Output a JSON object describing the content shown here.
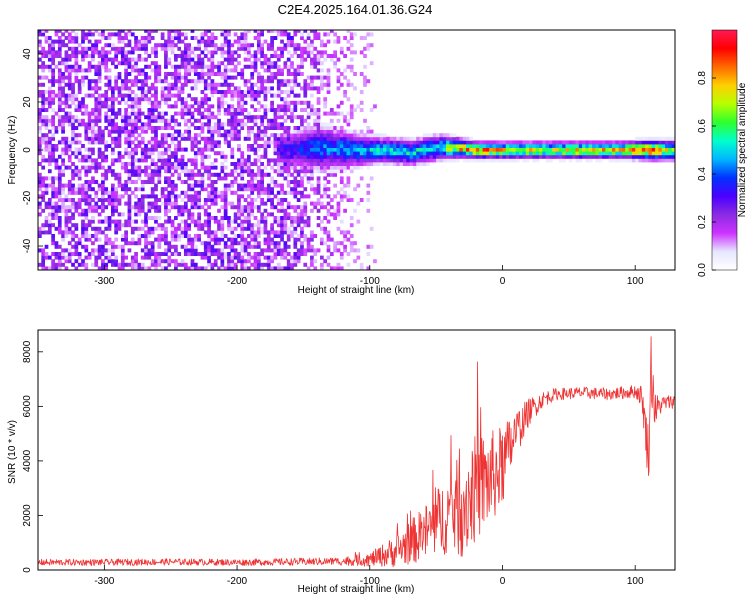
{
  "title": "C2E4.2025.164.01.36.G24",
  "colors": {
    "snr_line": "#ee3333",
    "axis": "#000000",
    "background": "#ffffff",
    "cbar_stops": [
      "#ffffff",
      "#e6e6ff",
      "#cc33ff",
      "#8a2be2",
      "#4a00ff",
      "#0033ff",
      "#00b7ff",
      "#00ffcc",
      "#2eff2e",
      "#b6ff00",
      "#ffd000",
      "#ff6a00",
      "#ff0000",
      "#ff1a55"
    ]
  },
  "chart_data": [
    {
      "id": "spectrogram",
      "type": "heatmap",
      "title": "C2E4.2025.164.01.36.G24",
      "xlabel": "Height of straight line (km)",
      "ylabel": "Frequency (Hz)",
      "xlim": [
        -350,
        130
      ],
      "ylim": [
        -50,
        50
      ],
      "xticks": [
        -300,
        -200,
        -100,
        0,
        100
      ],
      "yticks": [
        -40,
        -20,
        0,
        20,
        40
      ],
      "colorbar": {
        "label": "Normalized spectral amplitude",
        "ticks": [
          "0.0",
          "0.2",
          "0.4",
          "0.6",
          "0.8"
        ],
        "range": [
          0,
          1
        ]
      },
      "noise_region_km": [
        -350,
        -95
      ],
      "signal_ridge": {
        "frequency_hz": 0,
        "x_km": [
          -170,
          -140,
          -110,
          -90,
          -70,
          -50,
          -35,
          -20,
          0,
          30,
          60,
          90,
          110,
          130
        ],
        "center_hz": [
          0,
          1,
          0,
          0,
          -1,
          1,
          1,
          0,
          0,
          0,
          0,
          0,
          0,
          0
        ],
        "half_width_hz": [
          5,
          7,
          5,
          4,
          4,
          4,
          3,
          2.5,
          2.5,
          2.5,
          2.5,
          2.5,
          3,
          3
        ],
        "peak_amplitude": [
          0.3,
          0.4,
          0.45,
          0.5,
          0.5,
          0.5,
          0.75,
          0.8,
          0.75,
          0.7,
          0.75,
          0.75,
          0.85,
          0.6
        ]
      }
    },
    {
      "id": "snr",
      "type": "line",
      "xlabel": "Height of straight line (km)",
      "ylabel": "SNR (10 * v/v)",
      "xlim": [
        -350,
        130
      ],
      "ylim": [
        0,
        8800
      ],
      "xticks": [
        -300,
        -200,
        -100,
        0,
        100
      ],
      "yticks": [
        0,
        2000,
        4000,
        6000,
        8000
      ],
      "series": [
        {
          "name": "SNR",
          "x": [
            -350,
            -300,
            -250,
            -200,
            -160,
            -120,
            -100,
            -80,
            -60,
            -40,
            -30,
            -20,
            -10,
            0,
            10,
            20,
            30,
            40,
            60,
            80,
            100,
            105,
            110,
            112,
            115,
            120,
            130
          ],
          "y": [
            280,
            280,
            300,
            280,
            300,
            320,
            380,
            700,
            1300,
            2100,
            2400,
            3000,
            3300,
            3800,
            5000,
            5800,
            6250,
            6450,
            6500,
            6450,
            6550,
            6400,
            4200,
            7500,
            5800,
            6100,
            6200
          ],
          "noise_amplitude": [
            120,
            120,
            120,
            120,
            130,
            150,
            250,
            600,
            1000,
            1500,
            2000,
            2000,
            1800,
            1500,
            900,
            500,
            300,
            220,
            220,
            220,
            250,
            400,
            1200,
            1500,
            700,
            300,
            250
          ]
        }
      ]
    }
  ]
}
